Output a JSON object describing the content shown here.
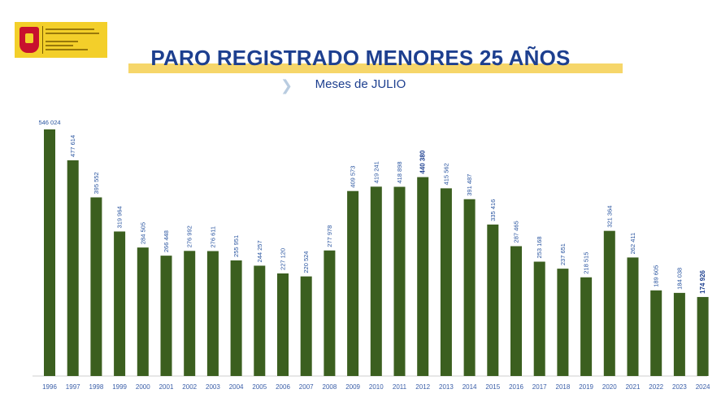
{
  "header": {
    "logo_icon": "gobierno-espana-logo",
    "logo_text": "VICEPRESIDENCIA SEGUNDA DEL GOBIERNO · MINISTERIO DE TRABAJO Y ECONOMÍA SOCIAL",
    "title": "PARO REGISTRADO MENORES 25 AÑOS",
    "subtitle": "Meses de JULIO",
    "chevron_icon": "chevron-right-icon"
  },
  "colors": {
    "bar": "#3b5f1f",
    "title": "#1d3f8f",
    "labels": "#2a55a0",
    "band": "#f6d66a",
    "logo": "#f3cf2a"
  },
  "chart_data": {
    "type": "bar",
    "title": "PARO REGISTRADO MENORES 25 AÑOS",
    "subtitle": "Meses de JULIO",
    "xlabel": "",
    "ylabel": "",
    "ylim": [
      0,
      546024
    ],
    "grid": false,
    "legend": "none",
    "categories": [
      "1996",
      "1997",
      "1998",
      "1999",
      "2000",
      "2001",
      "2002",
      "2003",
      "2004",
      "2005",
      "2006",
      "2007",
      "2008",
      "2009",
      "2010",
      "2011",
      "2012",
      "2013",
      "2014",
      "2015",
      "2016",
      "2017",
      "2018",
      "2019",
      "2020",
      "2021",
      "2022",
      "2023",
      "2024"
    ],
    "values": [
      546024,
      477614,
      395552,
      319964,
      284505,
      266448,
      276992,
      276611,
      255951,
      244257,
      227120,
      220524,
      277978,
      409573,
      419241,
      418898,
      440380,
      415562,
      391487,
      335416,
      287465,
      253168,
      237651,
      218515,
      321364,
      262411,
      189605,
      184038,
      174926
    ],
    "labels": [
      "546 024",
      "477 614",
      "395 552",
      "319 964",
      "284 505",
      "266 448",
      "276 992",
      "276 611",
      "255 951",
      "244 257",
      "227 120",
      "220 524",
      "277 978",
      "409 573",
      "419 241",
      "418 898",
      "440 380",
      "415 562",
      "391 487",
      "335 416",
      "287 465",
      "253 168",
      "237 651",
      "218 515",
      "321 364",
      "262 411",
      "189 605",
      "184 038",
      "174 926"
    ],
    "highlighted": [
      "2012",
      "2024"
    ]
  }
}
